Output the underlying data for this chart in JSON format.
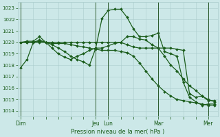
{
  "background_color": "#cce8e8",
  "grid_color": "#aacccc",
  "line_color": "#1a5c1a",
  "xlabel": "Pression niveau de la mer( hPa )",
  "ylim": [
    1013.5,
    1023.5
  ],
  "yticks": [
    1014,
    1015,
    1016,
    1017,
    1018,
    1019,
    1020,
    1021,
    1022,
    1023
  ],
  "day_labels": [
    "Dim",
    "Jeu",
    "Lun",
    "Mar",
    "Mer"
  ],
  "day_x": [
    0,
    12,
    14,
    22,
    30
  ],
  "xmax": 32,
  "series": [
    [
      1017.8,
      1018.5,
      1020.0,
      1020.1,
      1020.0,
      1019.9,
      1019.9,
      1019.9,
      1019.8,
      1019.7,
      1019.6,
      1019.5,
      1019.4,
      1019.3,
      1019.3,
      1019.3,
      1019.2,
      1019.1,
      1018.8,
      1018.2,
      1017.5,
      1016.8,
      1016.2,
      1015.7,
      1015.3,
      1015.0,
      1014.9,
      1014.8,
      1014.7,
      1014.6,
      1014.5,
      1014.5
    ],
    [
      1020.0,
      1020.0,
      1020.0,
      1020.2,
      1020.0,
      1019.8,
      1019.5,
      1019.2,
      1018.8,
      1018.5,
      1018.3,
      1018.0,
      1019.5,
      1022.1,
      1022.8,
      1022.9,
      1022.9,
      1022.2,
      1021.2,
      1020.5,
      1020.5,
      1020.6,
      1020.8,
      1019.2,
      1019.0,
      1018.8,
      1016.5,
      1015.2,
      1014.8,
      1014.5,
      1014.6,
      1014.6
    ],
    [
      1020.0,
      1020.0,
      1020.0,
      1020.0,
      1020.0,
      1020.0,
      1020.0,
      1020.0,
      1020.0,
      1020.0,
      1020.0,
      1020.0,
      1020.0,
      1020.0,
      1020.0,
      1020.0,
      1020.0,
      1019.8,
      1019.6,
      1019.5,
      1019.5,
      1019.5,
      1019.5,
      1019.5,
      1019.5,
      1019.4,
      1019.3,
      1015.5,
      1015.2,
      1015.3,
      1014.9,
      1014.9
    ],
    [
      1020.0,
      1020.1,
      1020.1,
      1020.5,
      1020.0,
      1019.5,
      1019.0,
      1018.7,
      1018.5,
      1018.8,
      1019.0,
      1019.3,
      1019.5,
      1019.5,
      1019.7,
      1019.9,
      1020.0,
      1020.5,
      1020.5,
      1020.3,
      1020.2,
      1019.8,
      1019.5,
      1018.8,
      1018.0,
      1017.5,
      1016.8,
      1016.2,
      1015.8,
      1015.3,
      1015.0,
      1014.8
    ]
  ]
}
